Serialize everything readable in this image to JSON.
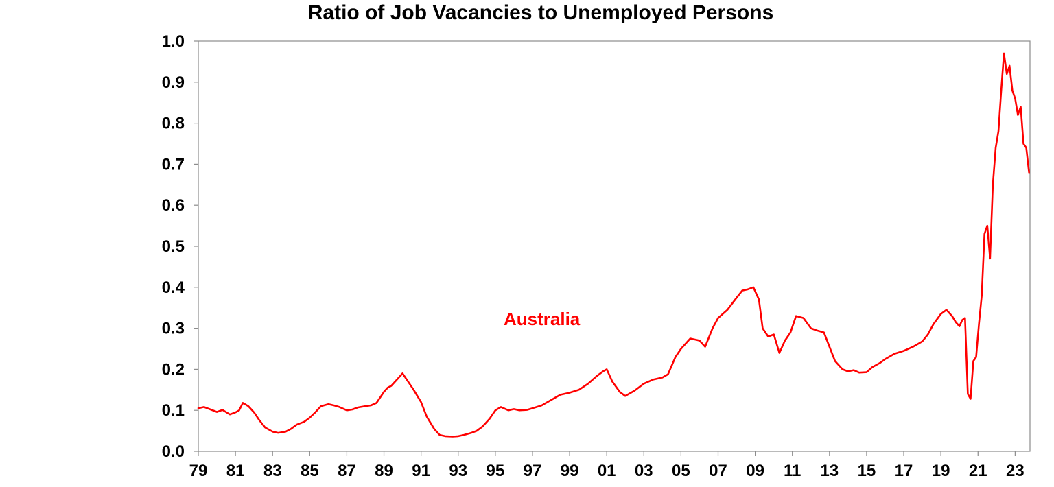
{
  "chart_data": {
    "type": "line",
    "title": "Ratio of Job Vacancies to Unemployed Persons",
    "xlabel": "",
    "ylabel": "",
    "ylim": [
      0,
      1.0
    ],
    "xlim": [
      1979.0,
      2023.8
    ],
    "grid": false,
    "x_tick_labels": [
      "79",
      "81",
      "83",
      "85",
      "87",
      "89",
      "91",
      "93",
      "95",
      "97",
      "99",
      "01",
      "03",
      "05",
      "07",
      "09",
      "11",
      "13",
      "15",
      "17",
      "19",
      "21",
      "23"
    ],
    "x_tick_years": [
      1979,
      1981,
      1983,
      1985,
      1987,
      1989,
      1991,
      1993,
      1995,
      1997,
      1999,
      2001,
      2003,
      2005,
      2007,
      2009,
      2011,
      2013,
      2015,
      2017,
      2019,
      2021,
      2023
    ],
    "y_tick_labels": [
      "0.0",
      "0.1",
      "0.2",
      "0.3",
      "0.4",
      "0.5",
      "0.6",
      "0.7",
      "0.8",
      "0.9",
      "1.0"
    ],
    "y_tick_values": [
      0,
      0.1,
      0.2,
      0.3,
      0.4,
      0.5,
      0.6,
      0.7,
      0.8,
      0.9,
      1.0
    ],
    "series": [
      {
        "name": "Australia",
        "color": "#ff0000",
        "x": [
          1979.0,
          1979.3,
          1979.6,
          1980.0,
          1980.3,
          1980.7,
          1981.0,
          1981.2,
          1981.4,
          1981.7,
          1982.0,
          1982.3,
          1982.6,
          1983.0,
          1983.3,
          1983.7,
          1984.0,
          1984.3,
          1984.7,
          1985.0,
          1985.3,
          1985.6,
          1986.0,
          1986.3,
          1986.6,
          1987.0,
          1987.3,
          1987.6,
          1988.0,
          1988.3,
          1988.6,
          1989.0,
          1989.2,
          1989.4,
          1989.7,
          1990.0,
          1990.3,
          1990.6,
          1991.0,
          1991.3,
          1991.7,
          1992.0,
          1992.3,
          1992.7,
          1993.0,
          1993.3,
          1993.7,
          1994.0,
          1994.3,
          1994.7,
          1995.0,
          1995.3,
          1995.7,
          1996.0,
          1996.3,
          1996.7,
          1997.0,
          1997.5,
          1998.0,
          1998.5,
          1999.0,
          1999.5,
          2000.0,
          2000.5,
          2000.8,
          2001.0,
          2001.3,
          2001.7,
          2002.0,
          2002.5,
          2003.0,
          2003.5,
          2004.0,
          2004.3,
          2004.7,
          2005.0,
          2005.5,
          2006.0,
          2006.3,
          2006.7,
          2007.0,
          2007.5,
          2008.0,
          2008.3,
          2008.6,
          2008.9,
          2009.2,
          2009.4,
          2009.7,
          2010.0,
          2010.3,
          2010.6,
          2010.9,
          2011.2,
          2011.6,
          2012.0,
          2012.3,
          2012.7,
          2013.0,
          2013.3,
          2013.7,
          2014.0,
          2014.3,
          2014.6,
          2015.0,
          2015.3,
          2015.7,
          2016.0,
          2016.5,
          2017.0,
          2017.5,
          2018.0,
          2018.3,
          2018.6,
          2019.0,
          2019.3,
          2019.6,
          2019.8,
          2020.0,
          2020.15,
          2020.3,
          2020.45,
          2020.6,
          2020.75,
          2020.9,
          2021.05,
          2021.2,
          2021.35,
          2021.5,
          2021.65,
          2021.8,
          2021.95,
          2022.1,
          2022.25,
          2022.4,
          2022.55,
          2022.7,
          2022.85,
          2023.0,
          2023.15,
          2023.3,
          2023.45,
          2023.6,
          2023.75
        ],
        "values": [
          0.105,
          0.108,
          0.103,
          0.096,
          0.101,
          0.09,
          0.095,
          0.1,
          0.118,
          0.11,
          0.095,
          0.075,
          0.058,
          0.048,
          0.045,
          0.048,
          0.055,
          0.065,
          0.072,
          0.082,
          0.095,
          0.11,
          0.115,
          0.112,
          0.108,
          0.1,
          0.102,
          0.107,
          0.11,
          0.112,
          0.118,
          0.145,
          0.155,
          0.16,
          0.175,
          0.19,
          0.17,
          0.15,
          0.12,
          0.085,
          0.055,
          0.04,
          0.037,
          0.036,
          0.037,
          0.04,
          0.045,
          0.05,
          0.06,
          0.08,
          0.1,
          0.108,
          0.1,
          0.103,
          0.1,
          0.101,
          0.105,
          0.112,
          0.125,
          0.138,
          0.143,
          0.15,
          0.165,
          0.185,
          0.195,
          0.2,
          0.17,
          0.145,
          0.135,
          0.148,
          0.165,
          0.175,
          0.18,
          0.188,
          0.23,
          0.25,
          0.275,
          0.27,
          0.255,
          0.3,
          0.325,
          0.345,
          0.375,
          0.392,
          0.395,
          0.4,
          0.37,
          0.3,
          0.28,
          0.285,
          0.24,
          0.27,
          0.29,
          0.33,
          0.325,
          0.3,
          0.295,
          0.29,
          0.255,
          0.22,
          0.2,
          0.195,
          0.198,
          0.192,
          0.193,
          0.205,
          0.215,
          0.225,
          0.238,
          0.245,
          0.255,
          0.268,
          0.285,
          0.31,
          0.335,
          0.345,
          0.33,
          0.315,
          0.305,
          0.32,
          0.325,
          0.14,
          0.128,
          0.22,
          0.23,
          0.31,
          0.38,
          0.53,
          0.55,
          0.47,
          0.65,
          0.74,
          0.78,
          0.88,
          0.97,
          0.92,
          0.94,
          0.88,
          0.86,
          0.82,
          0.84,
          0.75,
          0.74,
          0.68
        ]
      }
    ],
    "series_label": "Australia"
  }
}
